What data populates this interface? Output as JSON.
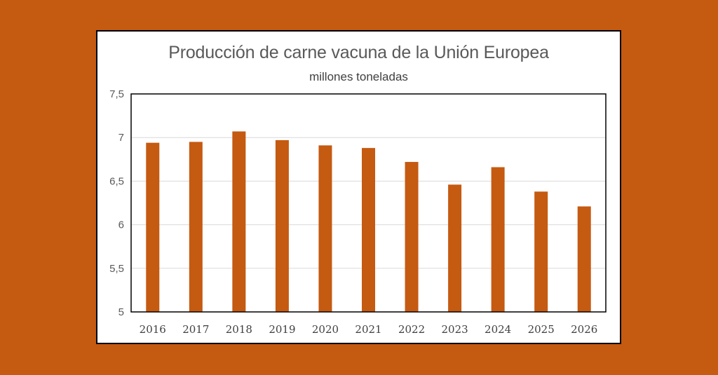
{
  "colors": {
    "background": "#c55a11",
    "bar": "#c55a11",
    "grid": "#d9d9d9",
    "text": "#595959"
  },
  "chart_data": {
    "type": "bar",
    "title": "Producción de carne vacuna de la Unión Europea",
    "subtitle": "millones toneladas",
    "xlabel": "",
    "ylabel": "",
    "categories": [
      "2016",
      "2017",
      "2018",
      "2019",
      "2020",
      "2021",
      "2022",
      "2023",
      "2024",
      "2025",
      "2026"
    ],
    "values": [
      6.94,
      6.95,
      7.07,
      6.97,
      6.91,
      6.88,
      6.72,
      6.46,
      6.66,
      6.38,
      6.21
    ],
    "ylim": [
      5,
      7.5
    ],
    "yticks": [
      5,
      5.5,
      6,
      6.5,
      7,
      7.5
    ],
    "ytick_labels": [
      "5",
      "5,5",
      "6",
      "6,5",
      "7",
      "7,5"
    ],
    "grid": true,
    "legend": "none"
  }
}
